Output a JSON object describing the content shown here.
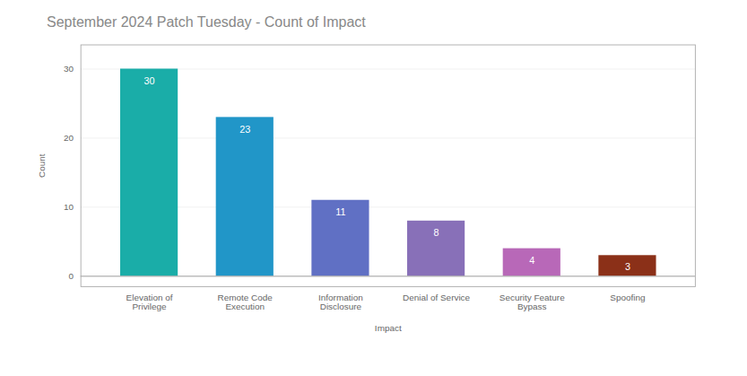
{
  "chart_data": {
    "type": "bar",
    "title": "September 2024 Patch Tuesday - Count of Impact",
    "categories": [
      "Elevation of\nPrivilege",
      "Remote Code\nExecution",
      "Information\nDisclosure",
      "Denial of Service",
      "Security Feature\nBypass",
      "Spoofing"
    ],
    "values": [
      30,
      23,
      11,
      8,
      4,
      3
    ],
    "colors": [
      "#1AADA8",
      "#2196C8",
      "#6070C4",
      "#8870B8",
      "#B868B8",
      "#8B3018"
    ],
    "xlabel": "Impact",
    "ylabel": "Count",
    "ylim": [
      -1.5,
      33.5
    ],
    "yticks": [
      0,
      10,
      20,
      30
    ],
    "grid": true,
    "data_labels": true
  }
}
